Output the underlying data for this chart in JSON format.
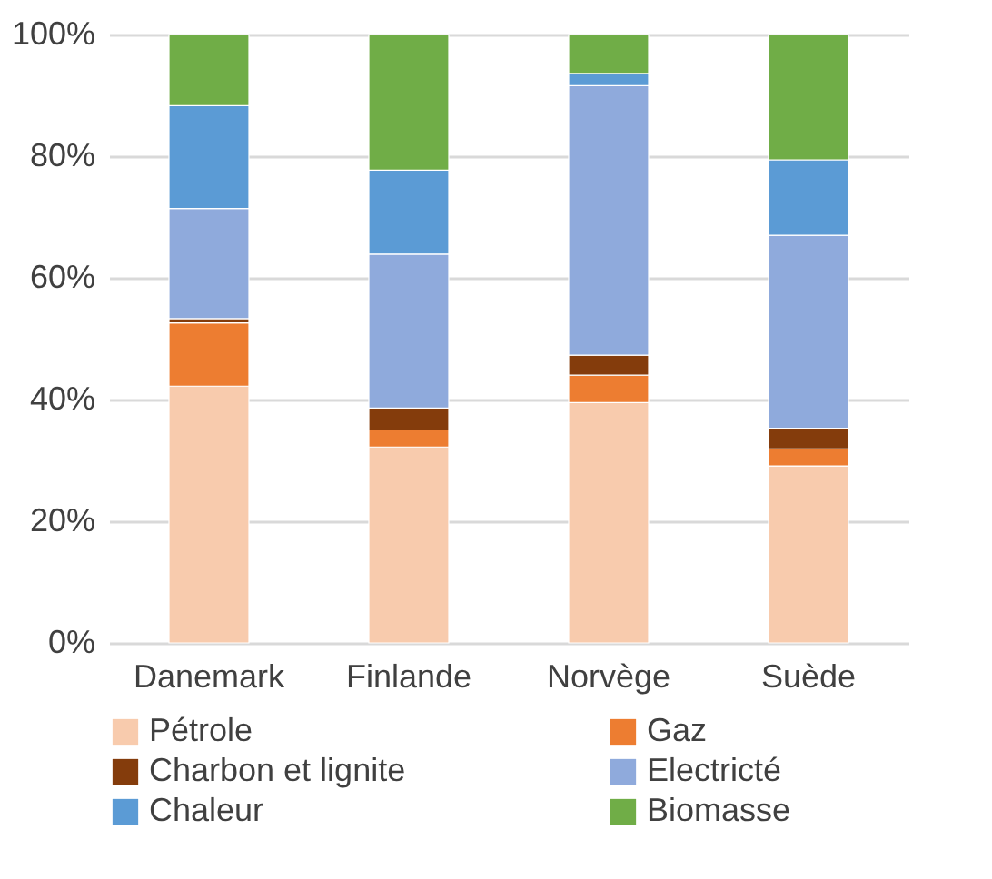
{
  "chart_data": {
    "type": "bar",
    "stacked": true,
    "categories": [
      "Danemark",
      "Finlande",
      "Norvège",
      "Suède"
    ],
    "series": [
      {
        "name": "Pétrole",
        "color": "#f8cbad",
        "values": [
          42.2,
          32.2,
          39.5,
          29.1
        ]
      },
      {
        "name": "Gaz",
        "color": "#ed7d31",
        "values": [
          10.4,
          2.8,
          4.5,
          2.8
        ]
      },
      {
        "name": "Charbon et lignite",
        "color": "#843c0c",
        "values": [
          0.7,
          3.6,
          3.3,
          3.4
        ]
      },
      {
        "name": "Electricté",
        "color": "#8faadc",
        "values": [
          18.1,
          25.3,
          44.3,
          31.7
        ]
      },
      {
        "name": "Chaleur",
        "color": "#5b9bd5",
        "values": [
          16.9,
          13.8,
          2.0,
          12.4
        ]
      },
      {
        "name": "Biomasse",
        "color": "#70ad47",
        "values": [
          11.7,
          22.3,
          6.4,
          20.6
        ]
      }
    ],
    "ylim": [
      0,
      100
    ],
    "yticks": [
      {
        "value": 0,
        "label": "0%"
      },
      {
        "value": 20,
        "label": "20%"
      },
      {
        "value": 40,
        "label": "40%"
      },
      {
        "value": 60,
        "label": "60%"
      },
      {
        "value": 80,
        "label": "80%"
      },
      {
        "value": 100,
        "label": "100%"
      }
    ],
    "grid": "y",
    "legend": "bottom"
  }
}
